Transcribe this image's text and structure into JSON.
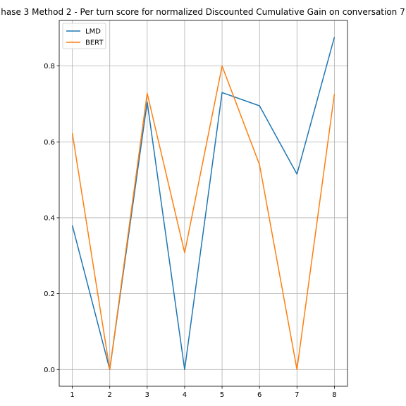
{
  "chart_data": {
    "type": "line",
    "title": "hase 3 Method 2 - Per turn score for normalized Discounted Cumulative Gain on conversation 7",
    "xlabel": "",
    "ylabel": "",
    "x": [
      1,
      2,
      3,
      4,
      5,
      6,
      7,
      8
    ],
    "xticks": [
      "1",
      "2",
      "3",
      "4",
      "5",
      "6",
      "7",
      "8"
    ],
    "yticks": [
      "0.0",
      "0.2",
      "0.4",
      "0.6",
      "0.8"
    ],
    "ytick_values": [
      0.0,
      0.2,
      0.4,
      0.6,
      0.8
    ],
    "xlim": [
      0.65,
      8.35
    ],
    "ylim": [
      -0.044,
      0.92
    ],
    "grid": true,
    "legend_position": "upper-left",
    "series": [
      {
        "name": "LMD",
        "color": "#1f77b4",
        "values": [
          0.38,
          0.0,
          0.705,
          0.0,
          0.73,
          0.695,
          0.515,
          0.876
        ]
      },
      {
        "name": "BERT",
        "color": "#ff7f0e",
        "values": [
          0.623,
          0.0,
          0.728,
          0.308,
          0.8,
          0.54,
          0.0,
          0.726
        ]
      }
    ]
  }
}
